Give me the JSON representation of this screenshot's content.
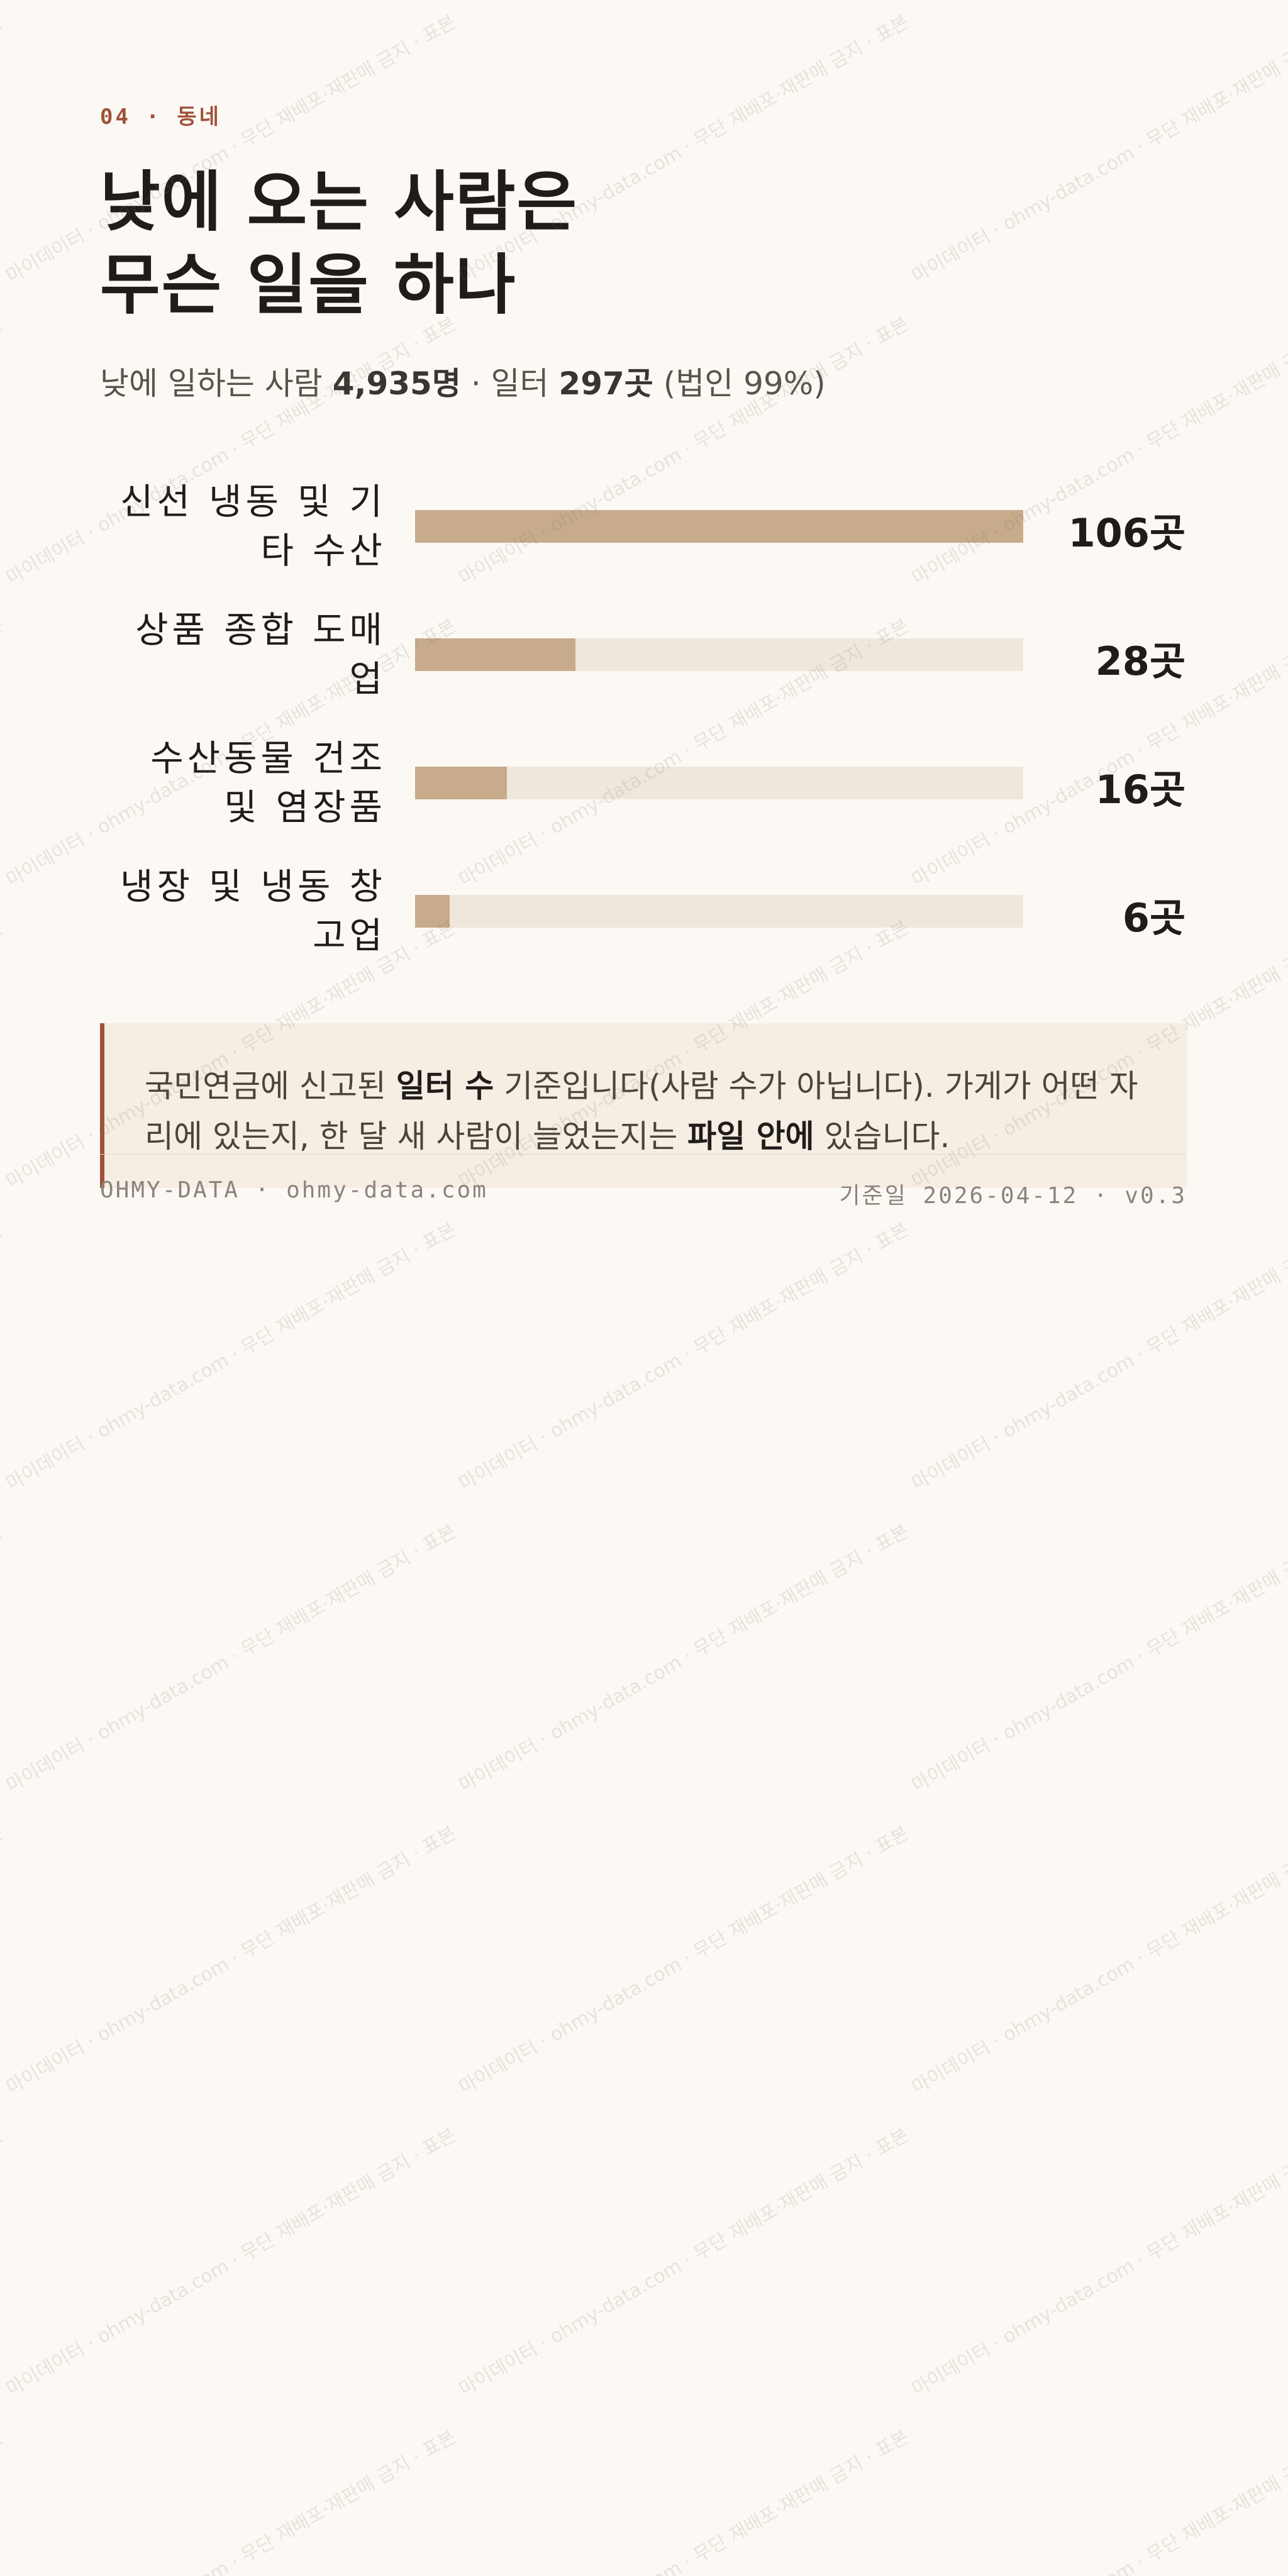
{
  "kicker": "04 · 동네",
  "chart_data": {
    "type": "bar",
    "orientation": "horizontal",
    "title": [
      "낮에 오는 사람은",
      "무슨 일을 하나"
    ],
    "subtitle": [
      {
        "text": "낮에 일하는 사람 ",
        "bold": false
      },
      {
        "text": "4,935명",
        "bold": true
      },
      {
        "text": " · 일터 ",
        "bold": false
      },
      {
        "text": "297곳",
        "bold": true
      },
      {
        "text": " (법인 99%)",
        "bold": false
      }
    ],
    "categories": [
      "신선 냉동 및 기타 수산",
      "상품 종합 도매업",
      "수산동물 건조 및 염장품",
      "냉장 및 냉동 창고업"
    ],
    "values": [
      106,
      28,
      16,
      6
    ],
    "value_labels": [
      "106곳",
      "28곳",
      "16곳",
      "6곳"
    ],
    "color": "#c7ab8b",
    "track_color": "#efe7dc"
  },
  "note": [
    {
      "text": "국민연금에 신고된 ",
      "bold": false
    },
    {
      "text": "일터 수",
      "bold": true
    },
    {
      "text": " 기준입니다(사람 수가 아닙니다). 가게가 어떤 자리에 있는지, 한 달 새 사람이 늘었는지는 ",
      "bold": false
    },
    {
      "text": "파일 안에",
      "bold": true
    },
    {
      "text": " 있습니다.",
      "bold": false
    }
  ],
  "footer": {
    "left": "OHMY-DATA · ohmy-data.com",
    "right": "기준일 2026-04-12 · v0.3"
  },
  "watermark": "마이데이터 · ohmy-data.com · 무단 재배포·재판매 금지 · 표본"
}
